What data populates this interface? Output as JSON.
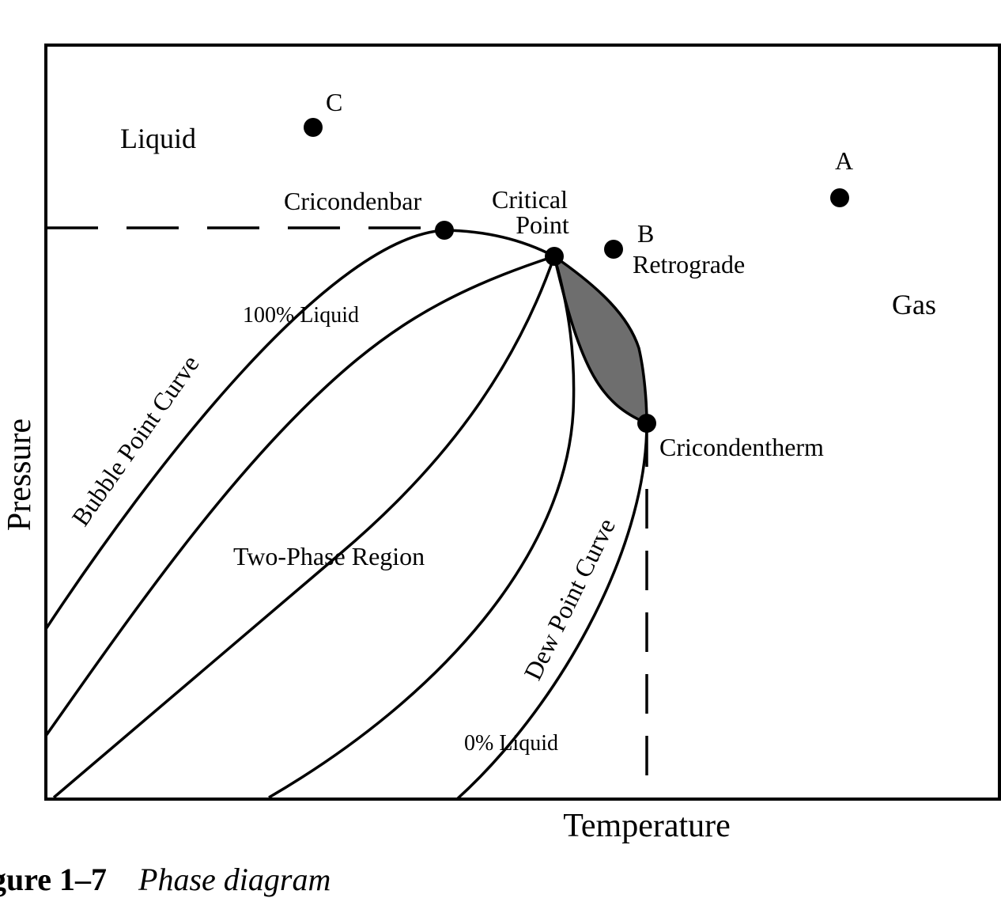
{
  "axes": {
    "x_label": "Temperature",
    "y_label": "Pressure"
  },
  "regions": {
    "liquid": "Liquid",
    "gas": "Gas",
    "two_phase": "Two-Phase Region",
    "retrograde": "Retrograde"
  },
  "curves": {
    "bubble_point": "Bubble Point Curve",
    "dew_point": "Dew Point Curve",
    "liquid_100": "100% Liquid",
    "liquid_0": "0% Liquid"
  },
  "points": {
    "a": "A",
    "b": "B",
    "c": "C",
    "critical_line1": "Critical",
    "critical_line2": "Point",
    "cricondenbar": "Cricondenbar",
    "cricondentherm": "Cricondentherm"
  },
  "caption": {
    "number": "gure 1–7",
    "title": "Phase diagram"
  },
  "colors": {
    "shade": "#6e6e6e",
    "ink": "#000000"
  }
}
